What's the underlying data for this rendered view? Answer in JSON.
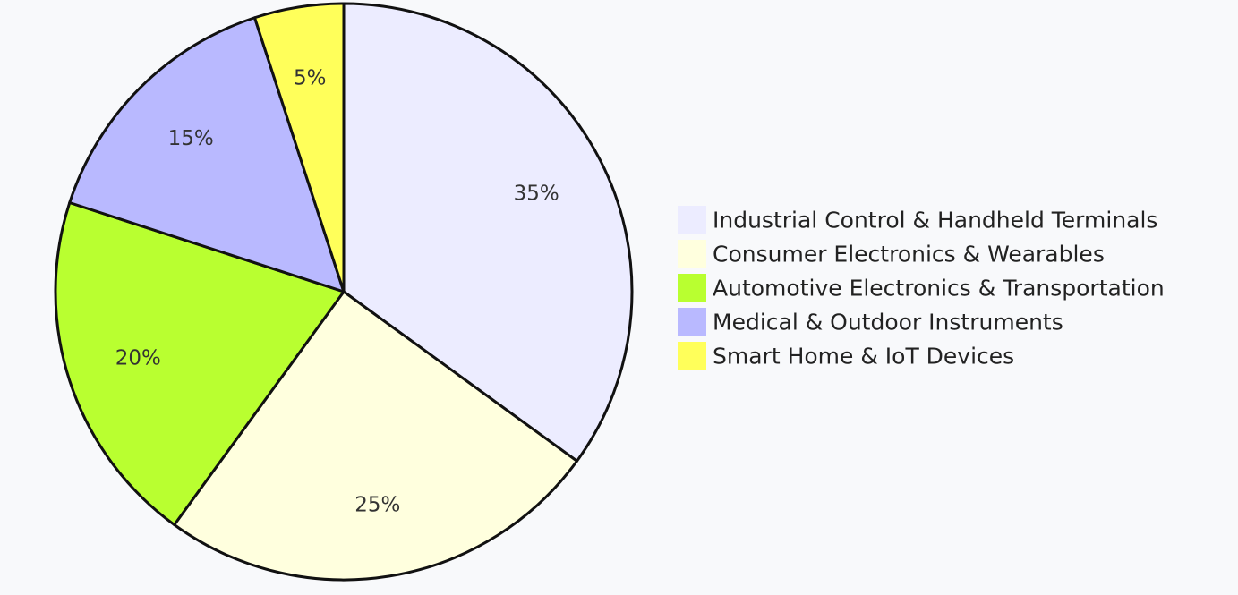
{
  "chart_data": {
    "type": "pie",
    "title": "",
    "categories": [
      "Industrial Control & Handheld Terminals",
      "Consumer Electronics & Wearables",
      "Automotive Electronics & Transportation",
      "Medical & Outdoor Instruments",
      "Smart Home & IoT Devices"
    ],
    "values": [
      35,
      25,
      20,
      15,
      5
    ],
    "labels": [
      "35%",
      "25%",
      "20%",
      "15%",
      "5%"
    ],
    "slice_colors": [
      "#ececff",
      "#ffffde",
      "#b9ff30",
      "#b9b9ff",
      "#ffff5a"
    ],
    "legend_colors": [
      "#ececff",
      "#ffffde",
      "#b9ff30",
      "#b9b9ff",
      "#ffff5a"
    ],
    "legend_placement": "right",
    "start_angle": "top, clockwise"
  }
}
